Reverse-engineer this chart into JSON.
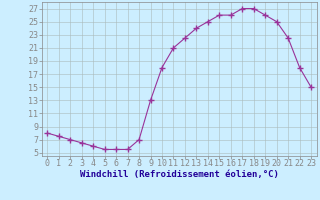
{
  "x": [
    0,
    1,
    2,
    3,
    4,
    5,
    6,
    7,
    8,
    9,
    10,
    11,
    12,
    13,
    14,
    15,
    16,
    17,
    18,
    19,
    20,
    21,
    22,
    23
  ],
  "y": [
    8.0,
    7.5,
    7.0,
    6.5,
    6.0,
    5.5,
    5.5,
    5.5,
    7.0,
    13.0,
    18.0,
    21.0,
    22.5,
    24.0,
    25.0,
    26.0,
    26.0,
    27.0,
    27.0,
    26.0,
    25.0,
    22.5,
    18.0,
    15.0
  ],
  "line_color": "#993399",
  "marker": "+",
  "marker_size": 4,
  "marker_lw": 1.0,
  "background_color": "#cceeff",
  "grid_color": "#aabbbb",
  "xlabel": "Windchill (Refroidissement éolien,°C)",
  "ylabel_ticks": [
    5,
    7,
    9,
    11,
    13,
    15,
    17,
    19,
    21,
    23,
    25,
    27
  ],
  "xlim": [
    -0.5,
    23.5
  ],
  "ylim": [
    4.5,
    28.0
  ],
  "xlabel_fontsize": 6.5,
  "tick_fontsize": 6,
  "xlabel_color": "#220099",
  "tick_label_color": "#993399"
}
